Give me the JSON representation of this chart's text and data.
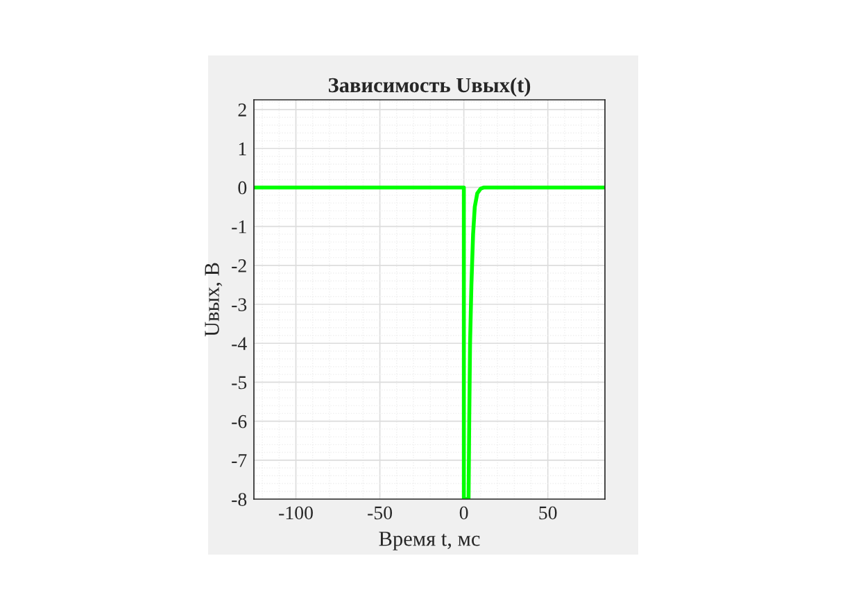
{
  "chart_data": {
    "type": "line",
    "title": "Зависимость Uвых(t)",
    "xlabel": "Время t, мс",
    "ylabel": "Uвых, В",
    "series": [
      {
        "color": "#00ff00",
        "x": [
          -125,
          0,
          0,
          2.8,
          3.2,
          3.7,
          4.5,
          5.5,
          6.5,
          8,
          10,
          12,
          84
        ],
        "values": [
          0,
          0,
          -8,
          -8,
          -6,
          -4,
          -2.5,
          -1.2,
          -0.5,
          -0.15,
          -0.03,
          0,
          0
        ]
      }
    ],
    "xlim": [
      -125,
      84
    ],
    "ylim": [
      -8,
      2.25
    ],
    "xticks": [
      -100,
      -50,
      0,
      50
    ],
    "yticks": [
      -8,
      -7,
      -6,
      -5,
      -4,
      -3,
      -2,
      -1,
      0,
      1,
      2
    ],
    "grid": true,
    "legend": false,
    "marker": "none",
    "line_style": "solid"
  }
}
